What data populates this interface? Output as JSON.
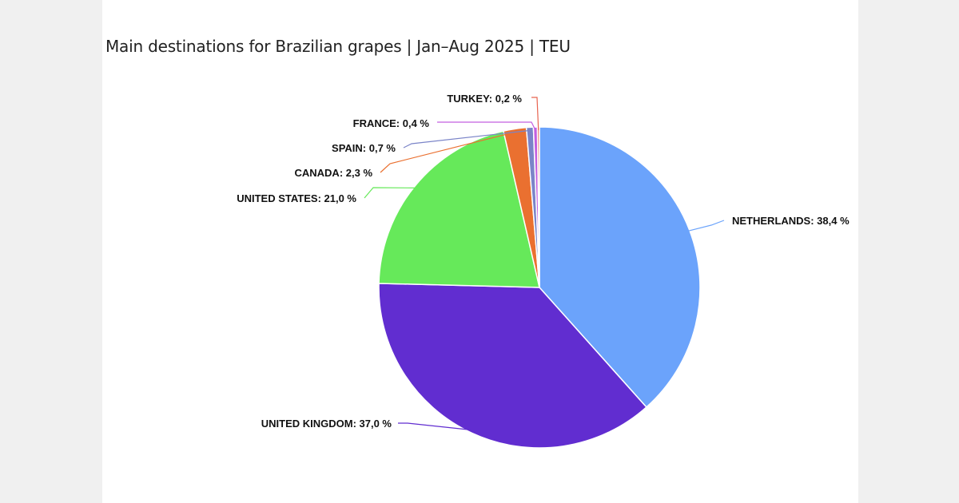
{
  "chart_data": {
    "type": "pie",
    "title": "Main destinations for Brazilian grapes | Jan–Aug 2025 | TEU",
    "slices": [
      {
        "label": "NETHERLANDS: 38,4 %",
        "name": "NETHERLANDS",
        "value": 38.4,
        "color": "#6ba3fb"
      },
      {
        "label": "UNITED KINGDOM: 37,0 %",
        "name": "UNITED KINGDOM",
        "value": 37.0,
        "color": "#612dd0"
      },
      {
        "label": "UNITED STATES: 21,0 %",
        "name": "UNITED STATES",
        "value": 21.0,
        "color": "#66e95a"
      },
      {
        "label": "CANADA: 2,3 %",
        "name": "CANADA",
        "value": 2.3,
        "color": "#ea7030"
      },
      {
        "label": "SPAIN: 0,7 %",
        "name": "SPAIN",
        "value": 0.7,
        "color": "#7a84c8"
      },
      {
        "label": "FRANCE: 0,4 %",
        "name": "FRANCE",
        "value": 0.4,
        "color": "#c35fe0"
      },
      {
        "label": "TURKEY: 0,2 %",
        "name": "TURKEY",
        "value": 0.2,
        "color": "#e8634f"
      }
    ],
    "legend": "none"
  }
}
